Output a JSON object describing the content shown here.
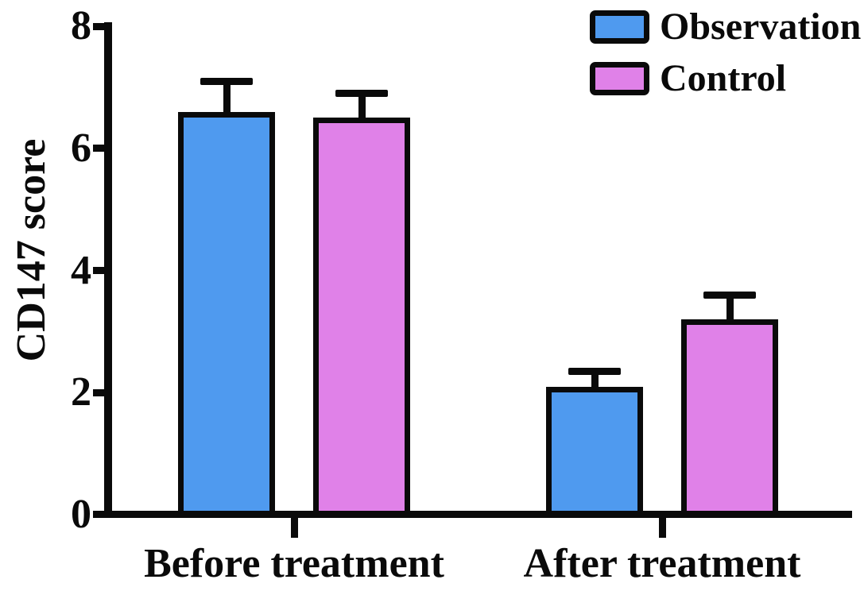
{
  "figure": {
    "background": "#ffffff",
    "text_color": "#0a0a0a"
  },
  "chart_data": {
    "type": "bar",
    "title": "",
    "xlabel": "",
    "ylabel": "CD147 score",
    "categories": [
      "Before treatment",
      "After treatment"
    ],
    "series": [
      {
        "name": "Observation",
        "color": "#4f9aef",
        "values": [
          6.6,
          2.1
        ],
        "errors": [
          0.5,
          0.25
        ]
      },
      {
        "name": "Control",
        "color": "#e081e8",
        "values": [
          6.5,
          3.2
        ],
        "errors": [
          0.4,
          0.4
        ]
      }
    ],
    "error_bars": "upper-only",
    "bar_edge_color": "#0a0a0a",
    "ylim": [
      0,
      8
    ],
    "yticks": [
      0,
      2,
      4,
      6,
      8
    ],
    "grid": false,
    "legend_position": "top-right"
  }
}
